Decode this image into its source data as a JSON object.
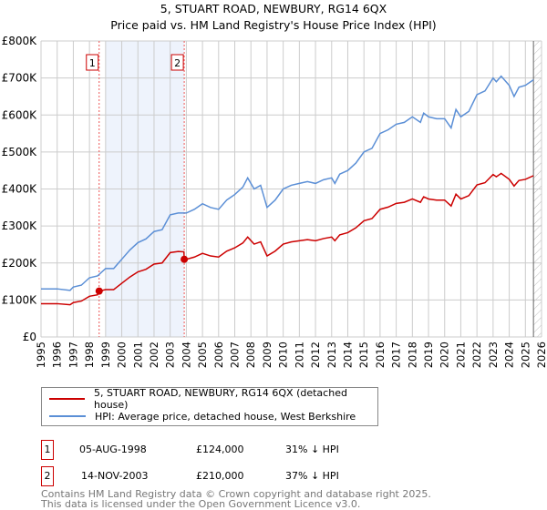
{
  "chart_data": {
    "type": "line",
    "title": "5, STUART ROAD, NEWBURY, RG14 6QX",
    "subtitle": "Price paid vs. HM Land Registry's House Price Index (HPI)",
    "xlim": [
      1995,
      2026
    ],
    "ylim": [
      0,
      800000
    ],
    "x_ticks": [
      "1995",
      "1996",
      "1997",
      "1998",
      "1999",
      "2000",
      "2001",
      "2002",
      "2003",
      "2004",
      "2005",
      "2006",
      "2007",
      "2008",
      "2009",
      "2010",
      "2011",
      "2012",
      "2013",
      "2014",
      "2015",
      "2016",
      "2017",
      "2018",
      "2019",
      "2020",
      "2021",
      "2022",
      "2023",
      "2024",
      "2025",
      "2026"
    ],
    "y_ticks": [
      {
        "v": 0,
        "label": "£0"
      },
      {
        "v": 100000,
        "label": "£100K"
      },
      {
        "v": 200000,
        "label": "£200K"
      },
      {
        "v": 300000,
        "label": "£300K"
      },
      {
        "v": 400000,
        "label": "£400K"
      },
      {
        "v": 500000,
        "label": "£500K"
      },
      {
        "v": 600000,
        "label": "£600K"
      },
      {
        "v": 700000,
        "label": "£700K"
      },
      {
        "v": 800000,
        "label": "£800K"
      }
    ],
    "grid": true,
    "shaded_range": [
      1999.0,
      2003.87
    ],
    "hatched_from": 2025.5,
    "series": [
      {
        "name": "5, STUART ROAD, NEWBURY, RG14 6QX (detached house)",
        "color": "#cc0000",
        "x": [
          1995,
          1996,
          1996.8,
          1997,
          1997.5,
          1998,
          1998.5,
          1998.6,
          1999,
          1999.5,
          2000,
          2000.5,
          2001,
          2001.5,
          2002,
          2002.5,
          2003,
          2003.5,
          2003.85,
          2003.87,
          2004,
          2004.5,
          2005,
          2005.5,
          2006,
          2006.5,
          2007,
          2007.5,
          2007.8,
          2008.2,
          2008.6,
          2009,
          2009.5,
          2010,
          2010.5,
          2011,
          2011.5,
          2012,
          2012.5,
          2013,
          2013.2,
          2013.5,
          2014,
          2014.5,
          2015,
          2015.5,
          2016,
          2016.5,
          2017,
          2017.5,
          2018,
          2018.5,
          2018.7,
          2019,
          2019.5,
          2020,
          2020.4,
          2020.7,
          2021,
          2021.5,
          2022,
          2022.5,
          2023,
          2023.2,
          2023.5,
          2024,
          2024.3,
          2024.6,
          2025,
          2025.5
        ],
        "y": [
          90,
          90,
          87,
          93,
          97,
          110,
          114,
          124,
          128,
          128,
          145,
          162,
          176,
          183,
          197,
          200,
          228,
          231,
          230,
          210,
          210,
          216,
          226,
          219,
          216,
          232,
          241,
          254,
          270,
          251,
          257,
          219,
          232,
          251,
          257,
          260,
          263,
          260,
          266,
          270,
          260,
          276,
          282,
          295,
          314,
          320,
          345,
          351,
          361,
          364,
          373,
          364,
          379,
          373,
          370,
          370,
          354,
          386,
          373,
          382,
          411,
          417,
          439,
          433,
          442,
          426,
          408,
          423,
          426,
          436
        ]
      },
      {
        "name": "HPI: Average price, detached house, West Berkshire",
        "color": "#5b8fd6",
        "x": [
          1995,
          1996,
          1996.8,
          1997,
          1997.5,
          1998,
          1998.5,
          1999,
          1999.5,
          2000,
          2000.5,
          2001,
          2001.5,
          2002,
          2002.5,
          2003,
          2003.5,
          2003.85,
          2004,
          2004.5,
          2005,
          2005.5,
          2006,
          2006.5,
          2007,
          2007.5,
          2007.8,
          2008.2,
          2008.6,
          2009,
          2009.5,
          2010,
          2010.5,
          2011,
          2011.5,
          2012,
          2012.5,
          2013,
          2013.2,
          2013.5,
          2014,
          2014.5,
          2015,
          2015.5,
          2016,
          2016.5,
          2017,
          2017.5,
          2018,
          2018.5,
          2018.7,
          2019,
          2019.5,
          2020,
          2020.4,
          2020.7,
          2021,
          2021.5,
          2022,
          2022.5,
          2023,
          2023.2,
          2023.5,
          2024,
          2024.3,
          2024.6,
          2025,
          2025.5
        ],
        "y": [
          130,
          130,
          126,
          135,
          140,
          160,
          165,
          185,
          185,
          210,
          235,
          255,
          265,
          285,
          290,
          330,
          335,
          335,
          335,
          345,
          360,
          350,
          345,
          370,
          385,
          405,
          430,
          400,
          410,
          350,
          370,
          400,
          410,
          415,
          420,
          415,
          425,
          430,
          415,
          440,
          450,
          470,
          500,
          510,
          550,
          560,
          575,
          580,
          595,
          580,
          605,
          595,
          590,
          590,
          565,
          615,
          595,
          610,
          655,
          665,
          700,
          690,
          705,
          680,
          650,
          675,
          680,
          695
        ]
      }
    ],
    "sales": [
      {
        "label": "1",
        "x": 1998.6,
        "y": 124,
        "date": "05-AUG-1998",
        "price": "£124,000",
        "hpi": "31% ↓ HPI"
      },
      {
        "label": "2",
        "x": 2003.87,
        "y": 210,
        "date": "14-NOV-2003",
        "price": "£210,000",
        "hpi": "37% ↓ HPI"
      }
    ],
    "y_unit": "thousands GBP"
  },
  "footer": [
    "Contains HM Land Registry data © Crown copyright and database right 2025.",
    "This data is licensed under the Open Government Licence v3.0."
  ]
}
